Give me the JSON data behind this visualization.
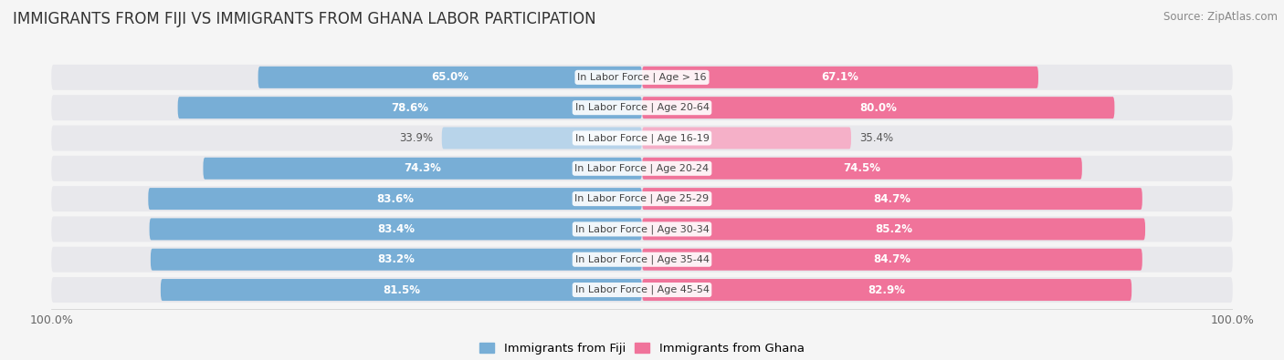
{
  "title": "IMMIGRANTS FROM FIJI VS IMMIGRANTS FROM GHANA LABOR PARTICIPATION",
  "source": "Source: ZipAtlas.com",
  "categories": [
    "In Labor Force | Age > 16",
    "In Labor Force | Age 20-64",
    "In Labor Force | Age 16-19",
    "In Labor Force | Age 20-24",
    "In Labor Force | Age 25-29",
    "In Labor Force | Age 30-34",
    "In Labor Force | Age 35-44",
    "In Labor Force | Age 45-54"
  ],
  "fiji_values": [
    65.0,
    78.6,
    33.9,
    74.3,
    83.6,
    83.4,
    83.2,
    81.5
  ],
  "ghana_values": [
    67.1,
    80.0,
    35.4,
    74.5,
    84.7,
    85.2,
    84.7,
    82.9
  ],
  "fiji_color": "#78aed6",
  "fiji_color_light": "#b8d4ea",
  "ghana_color": "#f0739a",
  "ghana_color_light": "#f5b0c8",
  "row_bg_color": "#e8e8ec",
  "bg_color": "#f5f5f5",
  "title_fontsize": 12,
  "source_fontsize": 8.5,
  "legend_fontsize": 9.5,
  "value_fontsize": 8.5,
  "category_fontsize": 8,
  "x_max": 100.0
}
